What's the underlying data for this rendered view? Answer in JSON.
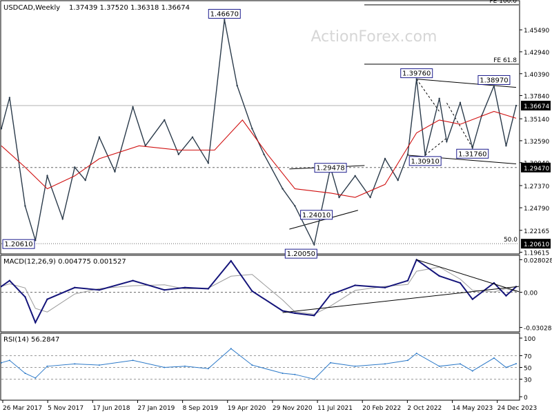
{
  "chart_data": [
    {
      "type": "line",
      "panel": "price",
      "symbol": "USDCAD,Weekly",
      "ohlc": "1.37439 1.37520 1.36318 1.36674",
      "watermark": "ActionForex.com",
      "ylim": [
        1.195,
        1.488
      ],
      "yticks": [
        1.4549,
        1.4294,
        1.4039,
        1.3784,
        1.3514,
        1.3259,
        1.3004,
        1.2737,
        1.2479,
        1.22165,
        1.19615
      ],
      "last_price": 1.36674,
      "levels": [
        {
          "label": "FE 100.0",
          "value": 1.484,
          "style": "solid"
        },
        {
          "label": "FE 61.8",
          "value": 1.415,
          "style": "solid"
        },
        {
          "label": "1.29470",
          "value": 1.2947,
          "style": "dashed"
        },
        {
          "label": "50.0",
          "value": 1.2061,
          "style": "dotted"
        },
        {
          "label": "1.20610",
          "value": 1.2061,
          "style": "dotted"
        }
      ],
      "annotations": [
        {
          "text": "1.46670",
          "x": "2020-03-19",
          "y": 1.4667
        },
        {
          "text": "1.39760",
          "x": "2022-10-13",
          "y": 1.3976
        },
        {
          "text": "1.38970",
          "x": "2023-10-26",
          "y": 1.3897
        },
        {
          "text": "1.29478",
          "x": "2021-08-19",
          "y": 1.29478
        },
        {
          "text": "1.24010",
          "x": "2021-06-01",
          "y": 1.2401
        },
        {
          "text": "1.20050",
          "x": "2021-05-31",
          "y": 1.2005
        },
        {
          "text": "1.30910",
          "x": "2022-11-24",
          "y": 1.3091
        },
        {
          "text": "1.31760",
          "x": "2023-07-13",
          "y": 1.3176
        },
        {
          "text": "1.20610",
          "x": "2017-05-05",
          "y": 1.2061
        }
      ],
      "series": [
        {
          "name": "",
          "x": [
            "2017-03-26",
            "2017-05-05",
            "2017-07-20",
            "2017-09-08",
            "2017-11-05",
            "2018-01-19",
            "2018-03-19",
            "2018-05-10",
            "2018-07-17",
            "2018-10-01",
            "2018-12-28",
            "2019-02-27",
            "2019-05-31",
            "2019-08-08",
            "2019-10-15",
            "2019-12-31",
            "2020-03-19",
            "2020-05-20",
            "2020-08-01",
            "2020-09-28",
            "2020-12-28",
            "2021-02-26",
            "2021-05-31",
            "2021-08-19",
            "2021-09-30",
            "2021-12-17",
            "2022-03-01",
            "2022-05-12",
            "2022-07-14",
            "2022-08-31",
            "2022-10-13",
            "2022-11-24",
            "2023-02-01",
            "2023-03-09",
            "2023-05-14",
            "2023-07-13",
            "2023-08-27",
            "2023-10-26",
            "2023-12-24",
            "2024-02-11"
          ],
          "values": [
            1.34,
            1.376,
            1.25,
            1.21,
            1.285,
            1.235,
            1.295,
            1.28,
            1.33,
            1.29,
            1.365,
            1.32,
            1.35,
            1.31,
            1.33,
            1.3,
            1.4667,
            1.39,
            1.34,
            1.31,
            1.27,
            1.25,
            1.205,
            1.2948,
            1.26,
            1.285,
            1.26,
            1.305,
            1.28,
            1.31,
            1.3976,
            1.3091,
            1.375,
            1.325,
            1.37,
            1.3176,
            1.355,
            1.3897,
            1.32,
            1.3667
          ]
        },
        {
          "name": "",
          "x": [
            "2017-03-26",
            "2017-07-20",
            "2017-11-05",
            "2018-03-19",
            "2018-07-17",
            "2019-01-27",
            "2019-08-08",
            "2020-01-31",
            "2020-06-15",
            "2020-10-15",
            "2021-02-26",
            "2021-08-19",
            "2021-12-17",
            "2022-05-12",
            "2022-10-13",
            "2023-02-01",
            "2023-05-14",
            "2023-10-26",
            "2024-02-11"
          ],
          "values": [
            1.32,
            1.295,
            1.27,
            1.285,
            1.305,
            1.32,
            1.315,
            1.315,
            1.35,
            1.31,
            1.27,
            1.265,
            1.26,
            1.275,
            1.335,
            1.35,
            1.345,
            1.36,
            1.352
          ]
        }
      ]
    },
    {
      "type": "line",
      "panel": "macd",
      "title": "MACD(12,26,9) 0.004775 0.001527",
      "ylim": [
        -0.0335,
        0.0312
      ],
      "yticks": [
        0.028028,
        0.0,
        -0.030286
      ],
      "series": [
        {
          "name": "",
          "x": [
            "2017-03-26",
            "2017-05-05",
            "2017-07-20",
            "2017-09-08",
            "2017-11-05",
            "2018-03-19",
            "2018-07-17",
            "2018-12-28",
            "2019-05-31",
            "2019-09-08",
            "2019-12-31",
            "2020-04-20",
            "2020-08-01",
            "2020-12-28",
            "2021-02-26",
            "2021-05-31",
            "2021-08-19",
            "2021-12-17",
            "2022-05-12",
            "2022-08-31",
            "2022-10-13",
            "2023-02-01",
            "2023-05-14",
            "2023-07-13",
            "2023-10-26",
            "2023-12-24",
            "2024-02-11"
          ],
          "values": [
            0.005,
            0.01,
            -0.004,
            -0.026,
            -0.006,
            0.004,
            0.002,
            0.01,
            0.002,
            0.004,
            0.003,
            0.027,
            0.001,
            -0.016,
            -0.018,
            -0.02,
            -0.002,
            0.006,
            0.004,
            0.01,
            0.028,
            0.014,
            0.008,
            -0.006,
            0.008,
            -0.003,
            0.0048
          ]
        }
      ]
    },
    {
      "type": "line",
      "panel": "rsi",
      "title": "RSI(14) 56.2847",
      "ylim": [
        0,
        100
      ],
      "yticks": [
        100,
        70,
        50,
        30,
        0
      ],
      "series": [
        {
          "name": "",
          "x": [
            "2017-03-26",
            "2017-05-05",
            "2017-07-20",
            "2017-09-08",
            "2017-11-05",
            "2018-03-19",
            "2018-07-17",
            "2018-12-28",
            "2019-05-31",
            "2019-09-08",
            "2019-12-31",
            "2020-04-20",
            "2020-08-01",
            "2020-12-28",
            "2021-02-26",
            "2021-05-31",
            "2021-08-19",
            "2021-12-17",
            "2022-05-12",
            "2022-08-31",
            "2022-10-13",
            "2023-02-01",
            "2023-05-14",
            "2023-07-13",
            "2023-10-26",
            "2023-12-24",
            "2024-02-11"
          ],
          "values": [
            58,
            62,
            40,
            32,
            52,
            56,
            54,
            62,
            50,
            52,
            48,
            82,
            54,
            40,
            38,
            30,
            58,
            52,
            56,
            62,
            74,
            52,
            56,
            44,
            66,
            50,
            56.3
          ]
        }
      ]
    }
  ],
  "x_axis": {
    "labels": [
      "26 Mar 2017",
      "5 Nov 2017",
      "17 Jun 2018",
      "27 Jan 2019",
      "8 Sep 2019",
      "19 Apr 2020",
      "29 Nov 2020",
      "11 Jul 2021",
      "20 Feb 2022",
      "2 Oct 2022",
      "14 May 2023",
      "24 Dec 2023"
    ]
  },
  "colors": {
    "price": "#2a3a4a",
    "moving_average": "#d01010",
    "macd_line": "#14147a",
    "signal_line": "#9a9a9a",
    "rsi_line": "#2a78c8",
    "label_border": "#1a1a8c",
    "grid_dashed": "#666666"
  }
}
